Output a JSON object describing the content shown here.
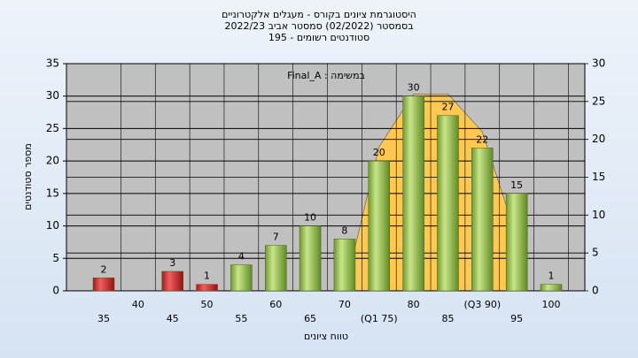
{
  "chart_data": {
    "type": "bar",
    "title": [
      "היסטוגרמת ציונים בקורס - מעגלים אלקטרוניים",
      "בסמסטר  (02/2022)  סמסטר אביב 2022/23",
      "סטודנטים רשומים - 195"
    ],
    "annotation": "במשימה : Final_A",
    "x_label": "טווח ציונים",
    "y_label": "מספר סטודנטים",
    "categories": [
      "35",
      "40",
      "45",
      "50",
      "55",
      "60",
      "65",
      "70",
      "(Q1 75)",
      "80",
      "85",
      "(Q3 90)",
      "95",
      "100"
    ],
    "values": [
      2,
      null,
      3,
      1,
      4,
      7,
      10,
      8,
      20,
      30,
      27,
      22,
      15,
      1
    ],
    "colors": [
      "#d42a2a",
      "#d42a2a",
      "#d42a2a",
      "#d42a2a",
      "#8fbf4a",
      "#8fbf4a",
      "#8fbf4a",
      "#8fbf4a",
      "#8fbf4a",
      "#8fbf4a",
      "#8fbf4a",
      "#8fbf4a",
      "#8fbf4a",
      "#8fbf4a"
    ],
    "area": {
      "values": [
        null,
        null,
        null,
        null,
        null,
        null,
        null,
        0,
        19,
        26,
        26,
        21,
        7,
        null
      ],
      "color": "#ffc850",
      "axis": "y2"
    },
    "ylim": [
      0,
      35
    ],
    "yticks": [
      0,
      5,
      10,
      15,
      20,
      25,
      30,
      35
    ],
    "y2lim": [
      0,
      30
    ],
    "y2ticks": [
      0,
      5,
      10,
      15,
      20,
      25,
      30
    ],
    "grid": true
  }
}
